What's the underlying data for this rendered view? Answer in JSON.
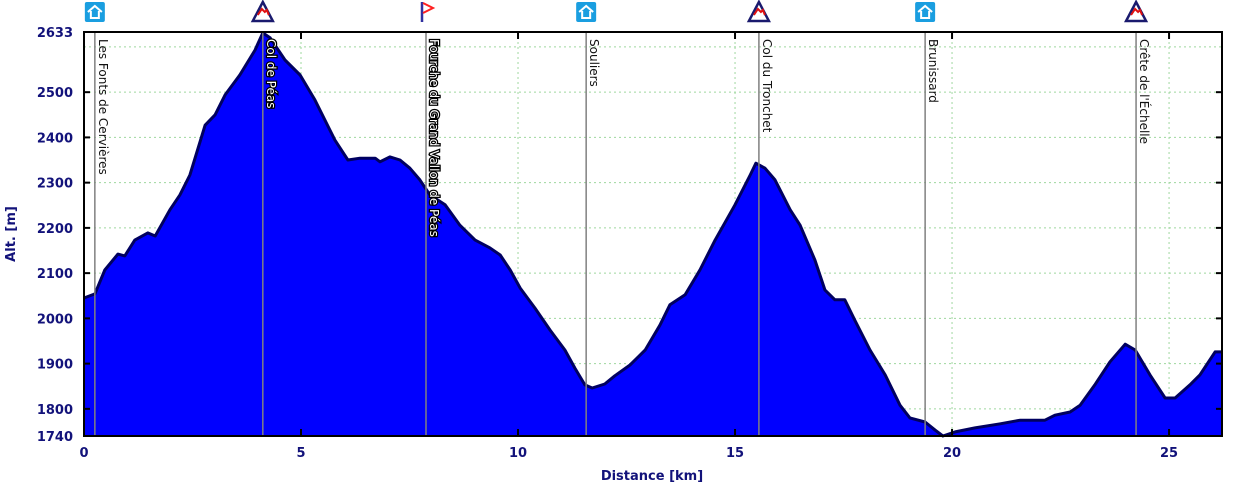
{
  "chart_data": {
    "type": "area",
    "title": "",
    "xlabel": "Distance [km]",
    "ylabel": "Alt. [m]",
    "xlim": [
      0,
      26.22
    ],
    "ylim": [
      1740,
      2633
    ],
    "grid": true,
    "x_ticks": [
      "0",
      "5",
      "10",
      "15",
      "20",
      "25"
    ],
    "x_tick_values": [
      0,
      5,
      10,
      15,
      20,
      25
    ],
    "y_ticks": [
      "2633",
      "2500",
      "2400",
      "2300",
      "2200",
      "2100",
      "2000",
      "1900",
      "1800",
      "1740"
    ],
    "y_tick_values": [
      2633,
      2500,
      2400,
      2300,
      2200,
      2100,
      2000,
      1900,
      1800,
      1740
    ],
    "y_grid_values": [
      2600,
      2500,
      2400,
      2300,
      2200,
      2100,
      2000,
      1900,
      1800
    ],
    "colors": {
      "fill": "#0000ff",
      "line": "#000060",
      "grid": "#9fd89f",
      "marker": "#808080"
    },
    "x": [
      0,
      0.25,
      0.48,
      0.78,
      0.94,
      1.17,
      1.47,
      1.64,
      1.98,
      2.21,
      2.44,
      2.79,
      3.02,
      3.25,
      3.59,
      3.94,
      4.12,
      4.29,
      4.63,
      4.98,
      5.32,
      5.78,
      6.08,
      6.36,
      6.71,
      6.82,
      7.05,
      7.28,
      7.51,
      7.74,
      7.97,
      8.32,
      8.66,
      9.01,
      9.35,
      9.59,
      9.82,
      10.05,
      10.39,
      10.74,
      11.08,
      11.31,
      11.54,
      11.71,
      12.0,
      12.23,
      12.58,
      12.93,
      13.27,
      13.5,
      13.85,
      14.19,
      14.54,
      15.0,
      15.35,
      15.48,
      15.69,
      15.92,
      16.27,
      16.5,
      16.84,
      17.07,
      17.3,
      17.53,
      17.76,
      18.11,
      18.46,
      18.8,
      19.03,
      19.38,
      19.61,
      19.79,
      20.07,
      20.53,
      21.11,
      21.57,
      22.14,
      22.37,
      22.72,
      22.95,
      23.29,
      23.64,
      23.99,
      24.22,
      24.56,
      24.91,
      25.14,
      25.48,
      25.71,
      26.06,
      26.22
    ],
    "y": [
      2045,
      2054,
      2107,
      2142,
      2138,
      2173,
      2189,
      2182,
      2240,
      2273,
      2317,
      2427,
      2450,
      2494,
      2538,
      2593,
      2631,
      2620,
      2571,
      2538,
      2483,
      2394,
      2350,
      2354,
      2354,
      2346,
      2357,
      2350,
      2332,
      2306,
      2273,
      2251,
      2206,
      2173,
      2156,
      2140,
      2107,
      2067,
      2023,
      1974,
      1930,
      1890,
      1853,
      1846,
      1855,
      1873,
      1897,
      1930,
      1985,
      2030,
      2052,
      2107,
      2173,
      2251,
      2317,
      2343,
      2332,
      2306,
      2240,
      2206,
      2129,
      2063,
      2041,
      2041,
      1996,
      1930,
      1875,
      1808,
      1780,
      1771,
      1753,
      1740,
      1749,
      1758,
      1767,
      1775,
      1775,
      1786,
      1793,
      1808,
      1853,
      1904,
      1943,
      1930,
      1875,
      1824,
      1824,
      1853,
      1875,
      1926,
      1926
    ],
    "waypoints": [
      {
        "name": "Les Fonts de Cervières",
        "km": 0.25,
        "icon": "hut-icon",
        "halo": false
      },
      {
        "name": "Col de Péas",
        "km": 4.12,
        "icon": "pass-icon",
        "halo": true
      },
      {
        "name": "Fourche du Grand Vallon de Péas",
        "km": 7.88,
        "icon": "flag-icon",
        "halo": true
      },
      {
        "name": "Souliers",
        "km": 11.57,
        "icon": "hut-icon",
        "halo": false
      },
      {
        "name": "Col du Tronchet",
        "km": 15.55,
        "icon": "pass-icon",
        "halo": false
      },
      {
        "name": "Brunissard",
        "km": 19.38,
        "icon": "hut-icon",
        "halo": false
      },
      {
        "name": "Crête de l'Échelle",
        "km": 24.24,
        "icon": "pass-icon",
        "halo": false
      }
    ]
  }
}
